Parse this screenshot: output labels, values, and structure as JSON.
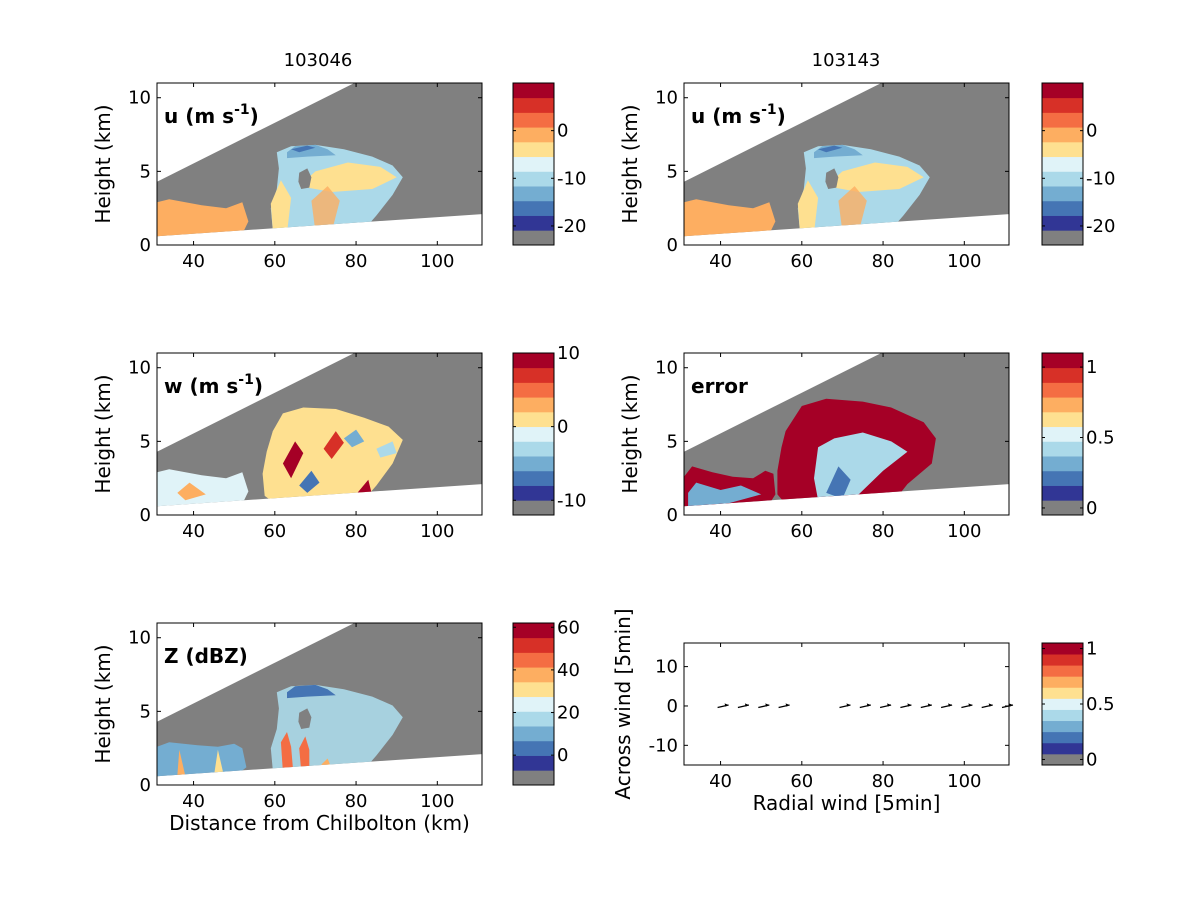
{
  "figure": {
    "column_titles": [
      "103046",
      "103143"
    ]
  },
  "chart_data": [
    {
      "type": "heatmap",
      "panel": "u",
      "column_title": "103046",
      "annotation": "u (m s-1)",
      "annotation_parts": [
        "u (m s",
        "-1",
        ")"
      ],
      "ylabel": "Height (km)",
      "xlabel": "",
      "xlim": [
        31,
        111
      ],
      "ylim": [
        0,
        11
      ],
      "xticks": [
        40,
        60,
        80,
        100
      ],
      "yticks": [
        0,
        5,
        10
      ],
      "colorbar": {
        "min": -24,
        "max": 10,
        "ticks": [
          0,
          -10,
          -20
        ]
      },
      "colors": [
        "#808080",
        "#313695",
        "#4575b4",
        "#74add1",
        "#abd9e9",
        "#e0f3f8",
        "#fee090",
        "#fdae61",
        "#f46d43",
        "#d73027",
        "#a50026"
      ]
    },
    {
      "type": "heatmap",
      "panel": "u",
      "column_title": "103143",
      "annotation": "u (m s-1)",
      "annotation_parts": [
        "u (m s",
        "-1",
        ")"
      ],
      "ylabel": "Height (km)",
      "xlabel": "",
      "xlim": [
        31,
        111
      ],
      "ylim": [
        0,
        11
      ],
      "xticks": [
        40,
        60,
        80,
        100
      ],
      "yticks": [
        0,
        5,
        10
      ],
      "colorbar": {
        "min": -24,
        "max": 10,
        "ticks": [
          0,
          -10,
          -20
        ]
      }
    },
    {
      "type": "heatmap",
      "panel": "w",
      "annotation": "w (m s-1)",
      "annotation_parts": [
        "w (m s",
        "-1",
        ")"
      ],
      "ylabel": "Height (km)",
      "xlabel": "",
      "xlim": [
        31,
        111
      ],
      "ylim": [
        0,
        11
      ],
      "xticks": [
        40,
        60,
        80,
        100
      ],
      "yticks": [
        0,
        5,
        10
      ],
      "colorbar": {
        "min": -12,
        "max": 10,
        "ticks": [
          10,
          0,
          -10
        ]
      }
    },
    {
      "type": "heatmap",
      "panel": "error",
      "annotation": "error",
      "ylabel": "Height (km)",
      "xlabel": "",
      "xlim": [
        31,
        111
      ],
      "ylim": [
        0,
        11
      ],
      "xticks": [
        40,
        60,
        80,
        100
      ],
      "yticks": [
        0,
        5,
        10
      ],
      "colorbar": {
        "min": -0.05,
        "max": 1.1,
        "ticks": [
          1,
          0.5,
          0
        ]
      }
    },
    {
      "type": "heatmap",
      "panel": "Z",
      "annotation": "Z (dBZ)",
      "ylabel": "Height (km)",
      "xlabel": "Distance from Chilbolton (km)",
      "xlim": [
        31,
        111
      ],
      "ylim": [
        0,
        11
      ],
      "xticks": [
        40,
        60,
        80,
        100
      ],
      "yticks": [
        0,
        5,
        10
      ],
      "colorbar": {
        "min": -14,
        "max": 62,
        "ticks": [
          60,
          40,
          20,
          0
        ]
      }
    },
    {
      "type": "scatter",
      "panel": "wind",
      "ylabel": "Across wind [5min]",
      "xlabel": "Radial wind [5min]",
      "xlim": [
        31,
        111
      ],
      "ylim": [
        -15,
        16
      ],
      "xticks": [
        40,
        60,
        80,
        100
      ],
      "yticks": [
        10,
        0,
        -10
      ],
      "x": [
        41,
        46,
        51,
        56,
        71,
        76,
        81,
        86,
        91,
        96,
        101,
        106,
        111
      ],
      "y": [
        0,
        0,
        0,
        0,
        0,
        0,
        0,
        0,
        0,
        0,
        0,
        0,
        0
      ],
      "colorbar": {
        "min": -0.05,
        "max": 1.05,
        "ticks": [
          1,
          0.5,
          0
        ]
      }
    }
  ]
}
